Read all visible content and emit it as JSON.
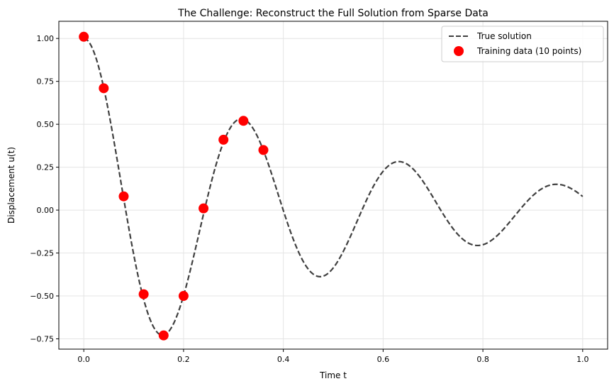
{
  "chart_data": {
    "type": "line",
    "title": "The Challenge: Reconstruct the Full Solution from Sparse Data",
    "xlabel": "Time t",
    "ylabel": "Displacement u(t)",
    "xlim": [
      -0.05,
      1.05
    ],
    "ylim": [
      -0.81,
      1.1
    ],
    "xticks": [
      0.0,
      0.2,
      0.4,
      0.6,
      0.8,
      1.0
    ],
    "xtick_labels": [
      "0.0",
      "0.2",
      "0.4",
      "0.6",
      "0.8",
      "1.0"
    ],
    "yticks": [
      -0.75,
      -0.5,
      -0.25,
      0.0,
      0.25,
      0.5,
      0.75,
      1.0
    ],
    "ytick_labels": [
      "−0.75",
      "−0.50",
      "−0.25",
      "0.00",
      "0.25",
      "0.50",
      "0.75",
      "1.00"
    ],
    "grid": true,
    "legend_position": "top-right",
    "series": [
      {
        "name": "True solution",
        "kind": "dashed-line",
        "color": "#404040",
        "model": {
          "type": "damped-harmonic-oscillator",
          "d": 2,
          "w0": 20,
          "t_range": [
            0,
            1
          ]
        }
      },
      {
        "name": "Training data (10 points)",
        "kind": "scatter",
        "color": "#ff0000",
        "x": [
          0.0,
          0.04,
          0.08,
          0.12,
          0.16,
          0.2,
          0.24,
          0.28,
          0.32,
          0.36
        ],
        "y": [
          1.01,
          0.71,
          0.08,
          -0.49,
          -0.73,
          -0.5,
          0.01,
          0.41,
          0.52,
          0.35
        ]
      }
    ]
  }
}
